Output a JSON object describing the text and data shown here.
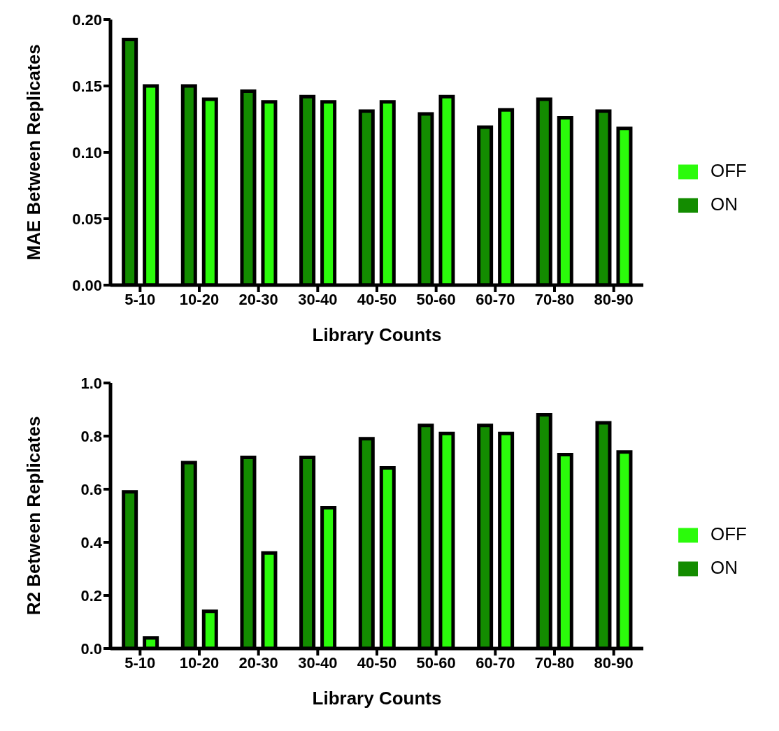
{
  "chart_data": [
    {
      "type": "bar",
      "xlabel": "Library Counts",
      "ylabel": "MAE Between Replicates",
      "categories": [
        "5-10",
        "10-20",
        "20-30",
        "30-40",
        "40-50",
        "50-60",
        "60-70",
        "70-80",
        "80-90"
      ],
      "series": [
        {
          "name": "ON",
          "color": "#138c00",
          "values": [
            0.185,
            0.15,
            0.146,
            0.142,
            0.131,
            0.129,
            0.119,
            0.14,
            0.131
          ]
        },
        {
          "name": "OFF",
          "color": "#2bfb0b",
          "values": [
            0.15,
            0.14,
            0.138,
            0.138,
            0.138,
            0.142,
            0.132,
            0.126,
            0.118
          ]
        }
      ],
      "ylim": [
        0,
        0.2
      ],
      "yticks": [
        {
          "value": 0,
          "label": "0.00"
        },
        {
          "value": 0.05,
          "label": "0.05"
        },
        {
          "value": 0.1,
          "label": "0.10"
        },
        {
          "value": 0.15,
          "label": "0.15"
        },
        {
          "value": 0.2,
          "label": "0.20"
        }
      ],
      "legend": "right"
    },
    {
      "type": "bar",
      "xlabel": "Library Counts",
      "ylabel": "R2 Between Replicates",
      "categories": [
        "5-10",
        "10-20",
        "20-30",
        "30-40",
        "40-50",
        "50-60",
        "60-70",
        "70-80",
        "80-90"
      ],
      "series": [
        {
          "name": "ON",
          "color": "#138c00",
          "values": [
            0.59,
            0.7,
            0.72,
            0.72,
            0.79,
            0.84,
            0.84,
            0.88,
            0.85
          ]
        },
        {
          "name": "OFF",
          "color": "#2bfb0b",
          "values": [
            0.04,
            0.14,
            0.36,
            0.53,
            0.68,
            0.81,
            0.81,
            0.73,
            0.74
          ]
        }
      ],
      "ylim": [
        0,
        1
      ],
      "yticks": [
        {
          "value": 0,
          "label": "0.0"
        },
        {
          "value": 0.2,
          "label": "0.2"
        },
        {
          "value": 0.4,
          "label": "0.4"
        },
        {
          "value": 0.6,
          "label": "0.6"
        },
        {
          "value": 0.8,
          "label": "0.8"
        },
        {
          "value": 1,
          "label": "1.0"
        }
      ],
      "legend": "right"
    }
  ]
}
